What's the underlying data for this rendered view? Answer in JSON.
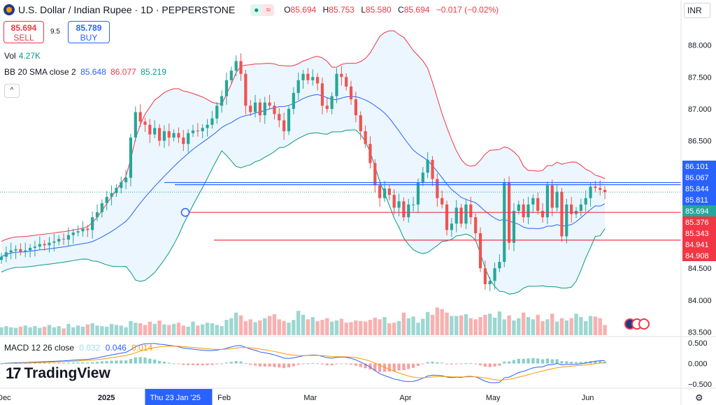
{
  "header": {
    "title": "U.S. Dollar / Indian Rupee · 1D · PEPPERSTONE",
    "status_icons": [
      "●",
      "≈"
    ],
    "ohlc": [
      {
        "key": "O",
        "value": "85.694"
      },
      {
        "key": "H",
        "value": "85.753"
      },
      {
        "key": "L",
        "value": "85.580"
      },
      {
        "key": "C",
        "value": "85.694"
      }
    ],
    "change": "−0.017 (−0.02%)"
  },
  "trade": {
    "sell_price": "85.694",
    "sell_label": "SELL",
    "spread": "9.5",
    "buy_price": "85.789",
    "buy_label": "BUY"
  },
  "volume": {
    "label": "Vol",
    "value": "4.27K"
  },
  "bb": {
    "label": "BB 20 SMA close 2",
    "basis": "85.648",
    "upper": "86.077",
    "lower": "85.219"
  },
  "collapse_icon": "^",
  "macd_legend": {
    "label": "MACD 12 26 close",
    "hist": "0.032",
    "macd": "0.046",
    "signal": "0.014"
  },
  "currency": "INR",
  "branding": {
    "mark": "17",
    "name": "TradingView"
  },
  "colors": {
    "up": "#26a69a",
    "down": "#ef5350",
    "blue": "#2962ff",
    "red": "#f23645"
  },
  "chart_data": {
    "type": "candlestick",
    "symbol": "USDINR",
    "interval": "1D",
    "price_range": [
      83.45,
      88.27
    ],
    "price_ticks": [
      "88.000",
      "87.500",
      "87.000",
      "86.500",
      "86.000",
      "85.500",
      "85.000",
      "84.500",
      "84.000",
      "83.500"
    ],
    "price_tick_values": [
      88.0,
      87.5,
      87.0,
      86.5,
      86.0,
      85.5,
      85.0,
      84.5,
      84.0,
      83.5
    ],
    "x_ticks": [
      {
        "label": "Dec",
        "bar": 0
      },
      {
        "label": "2025",
        "bar": 21
      },
      {
        "label": "Feb",
        "bar": 46
      },
      {
        "label": "Mar",
        "bar": 64
      },
      {
        "label": "Apr",
        "bar": 84
      },
      {
        "label": "May",
        "bar": 102
      },
      {
        "label": "Jun",
        "bar": 122
      }
    ],
    "crosshair_date": "Thu 23 Jan '25",
    "crosshair_bar": 37,
    "closes": [
      84.68,
      84.75,
      84.78,
      84.8,
      84.76,
      84.78,
      84.82,
      84.84,
      84.88,
      84.86,
      84.9,
      84.92,
      84.96,
      84.95,
      85.02,
      85.06,
      85.08,
      85.12,
      85.1,
      85.3,
      85.38,
      85.52,
      85.62,
      85.68,
      85.76,
      85.85,
      85.92,
      86.55,
      86.95,
      86.8,
      86.75,
      86.6,
      86.7,
      86.5,
      86.65,
      86.55,
      86.62,
      86.55,
      86.45,
      86.62,
      86.66,
      86.65,
      86.7,
      86.75,
      86.85,
      87.05,
      87.2,
      87.45,
      87.6,
      87.75,
      87.55,
      87.05,
      86.95,
      87.1,
      86.9,
      87.1,
      87.05,
      86.92,
      86.82,
      86.65,
      87.0,
      87.25,
      87.45,
      87.55,
      87.45,
      87.5,
      87.4,
      87.05,
      87.0,
      87.2,
      87.55,
      87.5,
      87.35,
      87.15,
      86.9,
      86.65,
      86.45,
      86.15,
      85.8,
      85.6,
      85.75,
      85.65,
      85.45,
      85.55,
      85.3,
      85.5,
      85.5,
      85.85,
      86.0,
      86.2,
      85.9,
      85.6,
      85.5,
      85.1,
      85.2,
      85.45,
      85.2,
      85.5,
      85.3,
      85.05,
      84.5,
      84.25,
      84.3,
      84.5,
      84.6,
      85.85,
      84.9,
      85.4,
      85.5,
      85.3,
      85.5,
      85.6,
      85.4,
      85.3,
      85.8,
      85.45,
      85.7,
      85.0,
      85.5,
      85.35,
      85.4,
      85.5,
      85.6,
      85.78,
      85.76,
      85.73,
      85.694
    ],
    "volume_range": [
      0,
      105
    ],
    "volumes": [
      14,
      16,
      14,
      13,
      15,
      17,
      14,
      16,
      13,
      15,
      18,
      14,
      16,
      12,
      20,
      14,
      17,
      15,
      19,
      21,
      17,
      16,
      15,
      20,
      18,
      17,
      14,
      25,
      22,
      21,
      18,
      24,
      20,
      26,
      19,
      18,
      20,
      22,
      17,
      15,
      24,
      17,
      19,
      22,
      21,
      18,
      16,
      27,
      30,
      40,
      35,
      25,
      28,
      23,
      26,
      30,
      34,
      37,
      28,
      25,
      22,
      27,
      43,
      36,
      28,
      32,
      25,
      27,
      30,
      24,
      26,
      29,
      22,
      23,
      26,
      25,
      24,
      27,
      31,
      28,
      32,
      21,
      22,
      25,
      40,
      30,
      33,
      22,
      29,
      41,
      36,
      49,
      46,
      40,
      34,
      34,
      35,
      37,
      30,
      28,
      32,
      36,
      38,
      31,
      42,
      28,
      35,
      26,
      30,
      40,
      32,
      28,
      36,
      25,
      28,
      38,
      24,
      30,
      26,
      30,
      38,
      32,
      25,
      34,
      33,
      30,
      18
    ]
  },
  "price_labels": {
    "upper_line": "85.844",
    "mid_line": "85.811",
    "red_line_1": "85.376",
    "red_line_2": "85.343",
    "red_line_3": "84.941",
    "red_line_4": "84.908",
    "bb_upper": "86.101",
    "bb_upper_2": "86.067",
    "last": "85.694"
  },
  "drawings": {
    "blue_hline_1": 85.844,
    "blue_hline_2": 85.811,
    "red_hline_1": 85.376,
    "red_hline_2": 84.941
  },
  "macd": {
    "ticks": [
      "0.500",
      "0.000",
      "−0.500"
    ],
    "tick_values": [
      0.5,
      0.0,
      -0.5
    ],
    "range": [
      -0.6,
      0.62
    ]
  }
}
